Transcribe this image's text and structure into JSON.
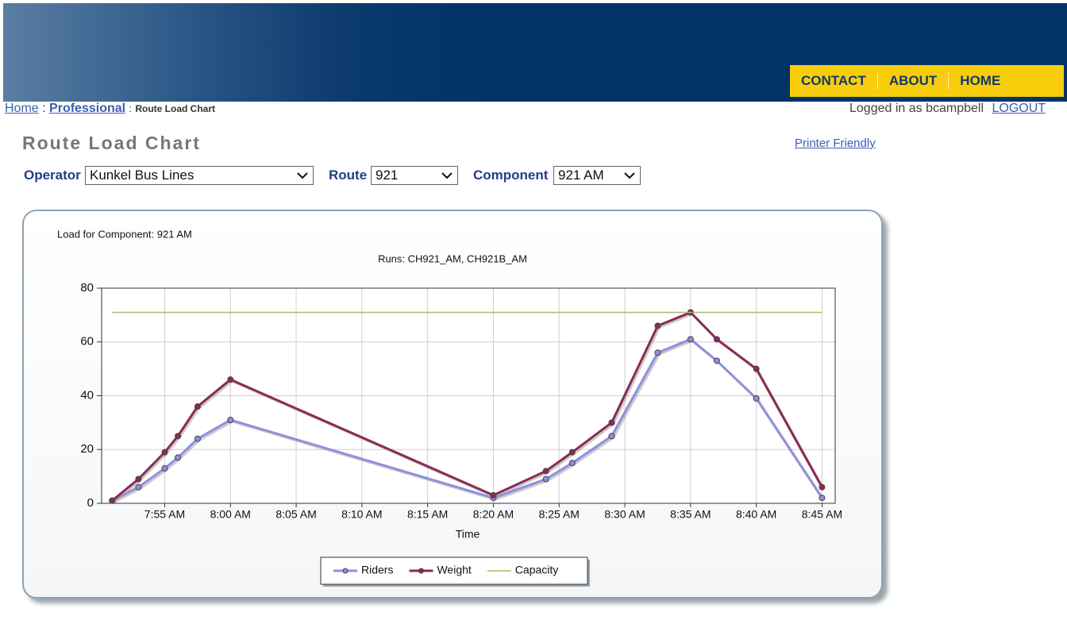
{
  "nav": [
    "CONTACT",
    "ABOUT",
    "HOME"
  ],
  "breadcrumb": {
    "items": [
      "Home",
      "Professional",
      "Route Load Chart"
    ],
    "separator": ":"
  },
  "user": {
    "status": "Logged in as bcampbell",
    "logout": "LOGOUT"
  },
  "page": {
    "title": "Route Load Chart",
    "printer_link": "Printer Friendly"
  },
  "filters": [
    {
      "label": "Operator",
      "value": "Kunkel Bus Lines"
    },
    {
      "label": "Route",
      "value": "921"
    },
    {
      "label": "Component",
      "value": "921 AM"
    }
  ],
  "chart_data": {
    "type": "line",
    "title": "Load for Component: 921 AM",
    "subtitle": "Runs: CH921_AM, CH921B_AM",
    "x_label": "Time",
    "x": [
      471,
      473,
      475,
      476,
      477.5,
      480,
      500,
      504,
      506,
      509,
      512.5,
      515,
      517,
      520,
      525
    ],
    "series": [
      {
        "name": "Riders",
        "color": "#8f8fe0",
        "marker": "circle",
        "values": [
          1,
          6,
          13,
          17,
          24,
          31,
          2,
          9,
          15,
          25,
          56,
          61,
          53,
          39,
          2
        ]
      },
      {
        "name": "Weight",
        "color": "#8b2a55",
        "marker": "circle",
        "values": [
          1,
          9,
          19,
          25,
          36,
          46,
          3,
          12,
          19,
          30,
          66,
          71,
          61,
          50,
          6
        ]
      },
      {
        "name": "Capacity",
        "color": "#b8b46a",
        "values": [
          71,
          71,
          71,
          71,
          71,
          71,
          71,
          71,
          71,
          71,
          71,
          71,
          71,
          71,
          71
        ]
      }
    ],
    "xlim": [
      470.2,
      526
    ],
    "xticks": [
      {
        "value": 475,
        "label": "7:55 AM"
      },
      {
        "value": 480,
        "label": "8:00 AM"
      },
      {
        "value": 485,
        "label": "8:05 AM"
      },
      {
        "value": 490,
        "label": "8:10 AM"
      },
      {
        "value": 495,
        "label": "8:15 AM"
      },
      {
        "value": 500,
        "label": "8:20 AM"
      },
      {
        "value": 505,
        "label": "8:25 AM"
      },
      {
        "value": 510,
        "label": "8:30 AM"
      },
      {
        "value": 515,
        "label": "8:35 AM"
      },
      {
        "value": 520,
        "label": "8:40 AM"
      },
      {
        "value": 525,
        "label": "8:45 AM"
      }
    ],
    "ylim": [
      0,
      80
    ],
    "yticks": [
      0,
      20,
      40,
      60,
      80
    ],
    "grid": true,
    "legend": "bottom"
  }
}
